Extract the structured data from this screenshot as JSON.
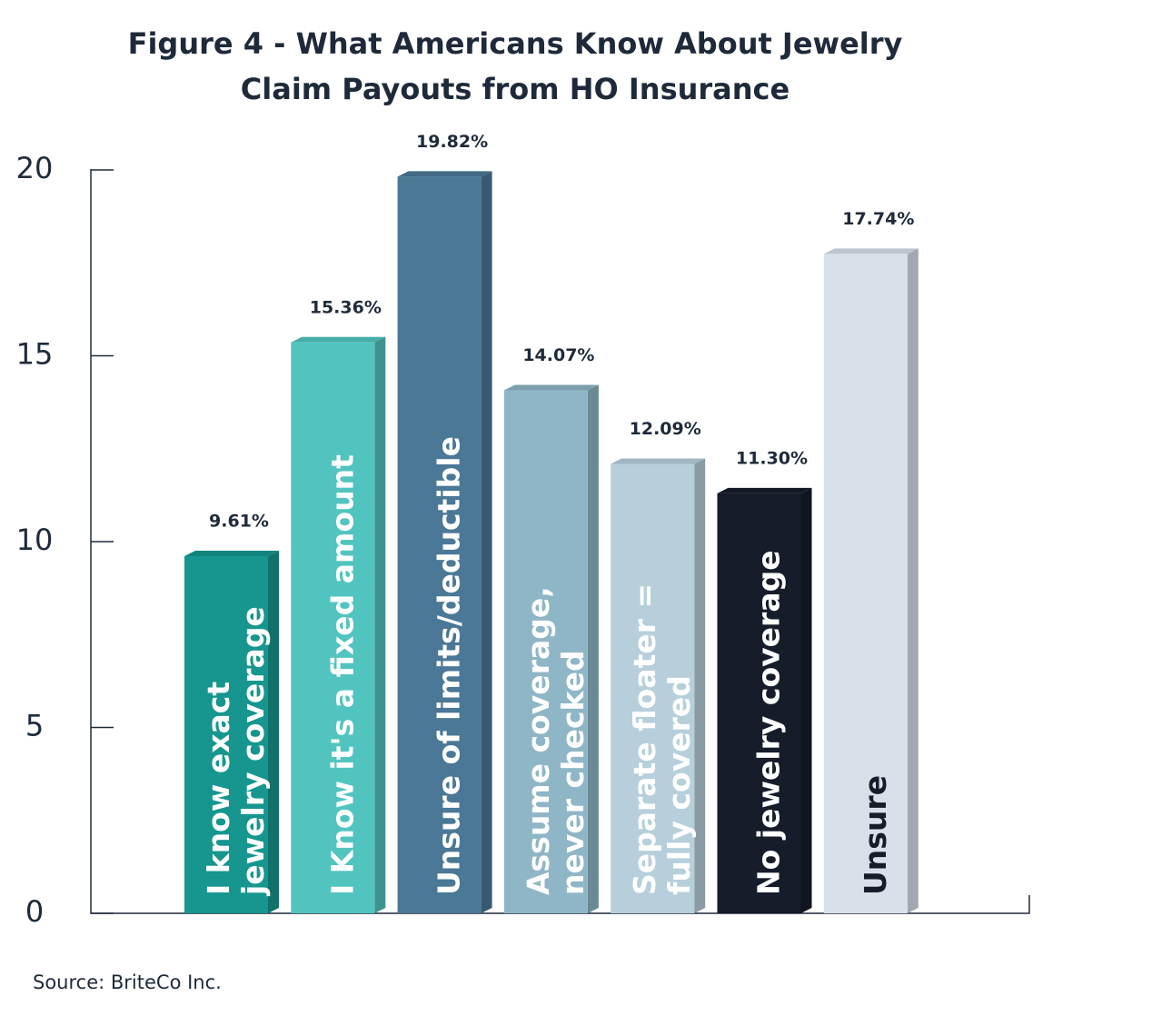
{
  "chart_data": {
    "type": "bar",
    "title": [
      "Figure 4 - What Americans Know About Jewelry",
      "Claim Payouts from HO Insurance"
    ],
    "categories": [
      "I know exact\njewelry coverage",
      "I Know it's a fixed amount",
      "Unsure of limits/deductible",
      "Assume coverage,\nnever checked",
      "Separate floater =\nfully covered",
      "No jewelry coverage",
      "Unsure"
    ],
    "values": [
      9.61,
      15.36,
      19.82,
      14.07,
      12.09,
      11.3,
      17.74
    ],
    "value_labels": [
      "9.61%",
      "15.36%",
      "19.82%",
      "14.07%",
      "12.09%",
      "11.30%",
      "17.74%"
    ],
    "colors": [
      "#16968e",
      "#52c4bf",
      "#4a7896",
      "#8fb6c6",
      "#b6cfdb",
      "#161c2a",
      "#d8e0ea"
    ],
    "label_colors": [
      "#ffffff",
      "#ffffff",
      "#ffffff",
      "#ffffff",
      "#ffffff",
      "#ffffff",
      "#161c2a"
    ],
    "ylim": [
      0,
      20
    ],
    "yticks": [
      0,
      5,
      10,
      15,
      20
    ],
    "source": "Source: BriteCo Inc."
  }
}
